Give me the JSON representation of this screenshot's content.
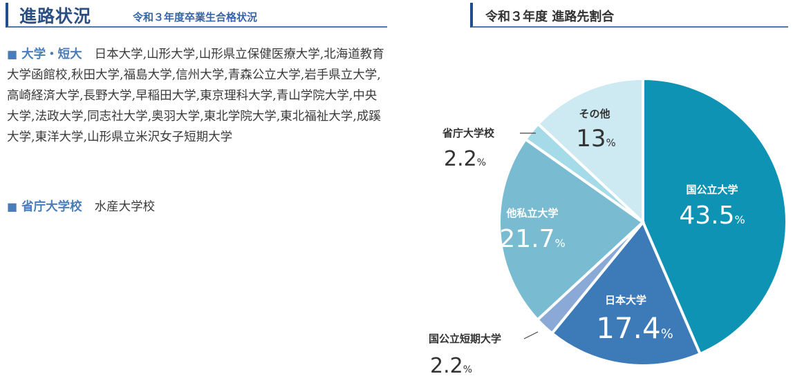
{
  "header": {
    "title": "進路状況",
    "subtitle": "令和３年度卒業生合格状況"
  },
  "categories": {
    "university": {
      "label": "大学・短大",
      "text": "日本大学,山形大学,山形県立保健医療大学,北海道教育大学函館校,秋田大学,福島大学,信州大学,青森公立大学,岩手県立大学,高崎経済大学,長野大学,早稲田大学,東京理科大学,青山学院大学,中央大学,法政大学,同志社大学,奥羽大学,東北学院大学,東北福祉大学,成蹊大学,東洋大学,山形県立米沢女子短期大学"
    },
    "government": {
      "label": "省庁大学校",
      "text": "水産大学校"
    }
  },
  "chart_title": "令和３年度 進路先割合",
  "chart_data": {
    "type": "pie",
    "title": "令和３年度 進路先割合",
    "slices": [
      {
        "label": "国公立大学",
        "value": 43.5,
        "display": "43.5",
        "color": "#0e93b5"
      },
      {
        "label": "日本大学",
        "value": 17.4,
        "display": "17.4",
        "color": "#3d7ab8"
      },
      {
        "label": "国公立短期大学",
        "value": 2.2,
        "display": "2.2",
        "color": "#8aa9d6"
      },
      {
        "label": "他私立大学",
        "value": 21.7,
        "display": "21.7",
        "color": "#79bcd1"
      },
      {
        "label": "省庁大学校",
        "value": 2.2,
        "display": "2.2",
        "color": "#a5dbe8"
      },
      {
        "label": "その他",
        "value": 13,
        "display": "13",
        "color": "#cde9f2"
      }
    ],
    "unit": "%"
  }
}
